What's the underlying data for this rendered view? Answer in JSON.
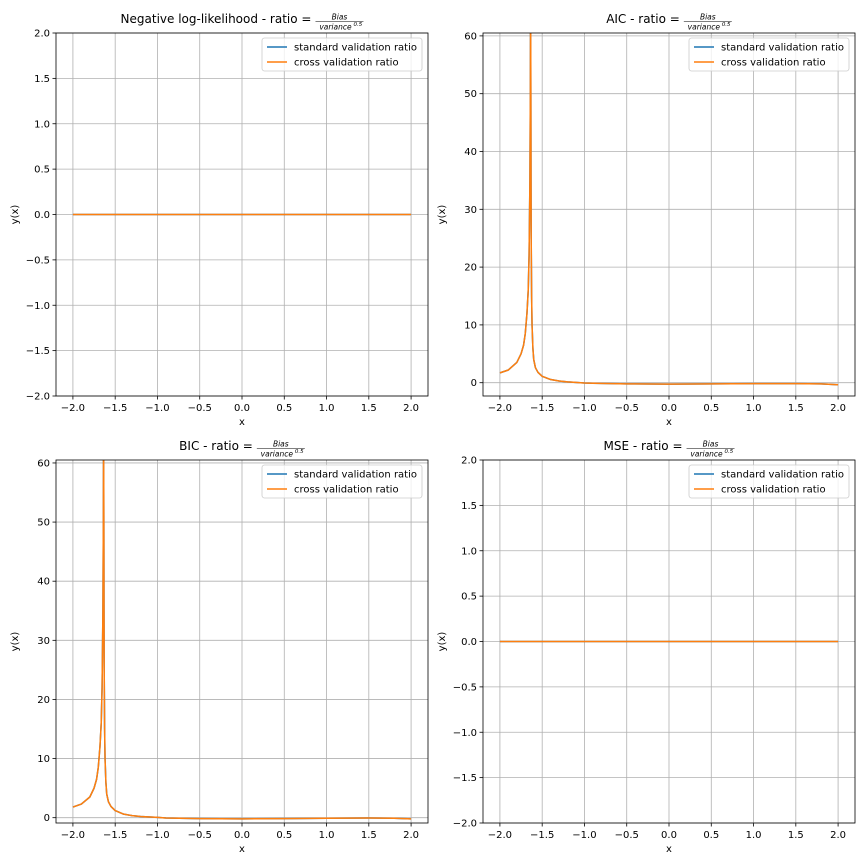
{
  "chart_data": [
    {
      "type": "line",
      "title": "Negative log-likelihood - ratio =",
      "title_fraction": {
        "numerator": "Bias",
        "denominator": "variance",
        "exponent": "0.5"
      },
      "xlabel": "x",
      "ylabel": "y(x)",
      "xlim": [
        -2.2,
        2.2
      ],
      "ylim": [
        -2.0,
        2.0
      ],
      "xticks": [
        "-2.0",
        "-1.5",
        "-1.0",
        "-0.5",
        "0.0",
        "0.5",
        "1.0",
        "1.5",
        "2.0"
      ],
      "yticks": [
        "-2.0",
        "-1.5",
        "-1.0",
        "-0.5",
        "0.0",
        "0.5",
        "1.0",
        "1.5",
        "2.0"
      ],
      "grid": true,
      "legend": "top-right",
      "series": [
        {
          "name": "standard validation ratio",
          "color": "#1f77b4",
          "x": [
            -2.0,
            -1.5,
            -1.0,
            -0.5,
            0.0,
            0.5,
            1.0,
            1.5,
            2.0
          ],
          "y": [
            0,
            0,
            0,
            0,
            0,
            0,
            0,
            0,
            0
          ]
        },
        {
          "name": "cross validation ratio",
          "color": "#ff7f0e",
          "x": [
            -2.0,
            -1.5,
            -1.0,
            -0.5,
            0.0,
            0.5,
            1.0,
            1.5,
            2.0
          ],
          "y": [
            0,
            0,
            0,
            0,
            0,
            0,
            0,
            0,
            0
          ]
        }
      ]
    },
    {
      "type": "line",
      "title": "AIC - ratio =",
      "title_fraction": {
        "numerator": "Bias",
        "denominator": "variance",
        "exponent": "0.5"
      },
      "xlabel": "x",
      "ylabel": "y(x)",
      "xlim": [
        -2.2,
        2.2
      ],
      "ylim": [
        -2.3,
        60.5
      ],
      "xticks": [
        "-2.0",
        "-1.5",
        "-1.0",
        "-0.5",
        "0.0",
        "0.5",
        "1.0",
        "1.5",
        "2.0"
      ],
      "yticks": [
        "0",
        "10",
        "20",
        "30",
        "40",
        "50",
        "60"
      ],
      "grid": true,
      "legend": "top-right",
      "series": [
        {
          "name": "standard validation ratio",
          "color": "#1f77b4",
          "x": [
            -2.0,
            -1.9,
            -1.8,
            -1.75,
            -1.72,
            -1.7,
            -1.68,
            -1.665,
            -1.655,
            -1.645,
            -1.64,
            -1.638,
            -1.636,
            -1.634,
            -1.632,
            -1.63,
            -1.625,
            -1.62,
            -1.61,
            -1.6,
            -1.58,
            -1.55,
            -1.5,
            -1.4,
            -1.3,
            -1.2,
            -1.0,
            -0.9,
            -0.5,
            0.0,
            0.5,
            1.0,
            1.5,
            1.8,
            2.0
          ],
          "y": [
            1.7,
            2.2,
            3.5,
            5.0,
            6.5,
            8.5,
            12.0,
            16.0,
            22.0,
            35.0,
            50.0,
            60.5,
            60.5,
            50.0,
            35.0,
            25.0,
            15.0,
            10.0,
            6.0,
            4.0,
            2.6,
            1.8,
            1.1,
            0.55,
            0.3,
            0.15,
            -0.05,
            -0.1,
            -0.2,
            -0.25,
            -0.2,
            -0.15,
            -0.15,
            -0.2,
            -0.35
          ]
        },
        {
          "name": "cross validation ratio",
          "color": "#ff7f0e",
          "x": [
            -2.0,
            -1.9,
            -1.8,
            -1.75,
            -1.72,
            -1.7,
            -1.68,
            -1.665,
            -1.655,
            -1.645,
            -1.64,
            -1.638,
            -1.636,
            -1.634,
            -1.632,
            -1.63,
            -1.625,
            -1.62,
            -1.61,
            -1.6,
            -1.58,
            -1.55,
            -1.5,
            -1.4,
            -1.3,
            -1.2,
            -1.0,
            -0.9,
            -0.5,
            0.0,
            0.5,
            1.0,
            1.5,
            1.8,
            2.0
          ],
          "y": [
            1.7,
            2.2,
            3.5,
            5.0,
            6.5,
            8.5,
            12.0,
            16.0,
            22.0,
            35.0,
            50.0,
            60.5,
            60.5,
            50.0,
            35.0,
            25.0,
            15.0,
            10.0,
            6.0,
            4.0,
            2.6,
            1.8,
            1.1,
            0.55,
            0.3,
            0.15,
            -0.05,
            -0.1,
            -0.2,
            -0.25,
            -0.2,
            -0.15,
            -0.15,
            -0.2,
            -0.35
          ]
        }
      ]
    },
    {
      "type": "line",
      "title": "BIC - ratio =",
      "title_fraction": {
        "numerator": "Bias",
        "denominator": "variance",
        "exponent": "0.5"
      },
      "xlabel": "x",
      "ylabel": "y(x)",
      "xlim": [
        -2.2,
        2.2
      ],
      "ylim": [
        -0.9,
        60.5
      ],
      "xticks": [
        "-2.0",
        "-1.5",
        "-1.0",
        "-0.5",
        "0.0",
        "0.5",
        "1.0",
        "1.5",
        "2.0"
      ],
      "yticks": [
        "0",
        "10",
        "20",
        "30",
        "40",
        "50",
        "60"
      ],
      "grid": true,
      "legend": "top-right",
      "series": [
        {
          "name": "standard validation ratio",
          "color": "#1f77b4",
          "x": [
            -2.0,
            -1.9,
            -1.8,
            -1.75,
            -1.72,
            -1.7,
            -1.68,
            -1.665,
            -1.655,
            -1.645,
            -1.64,
            -1.638,
            -1.636,
            -1.634,
            -1.632,
            -1.63,
            -1.625,
            -1.62,
            -1.61,
            -1.6,
            -1.58,
            -1.55,
            -1.5,
            -1.4,
            -1.3,
            -1.2,
            -1.0,
            -0.9,
            -0.5,
            0.0,
            0.5,
            1.0,
            1.5,
            1.8,
            2.0
          ],
          "y": [
            1.8,
            2.3,
            3.5,
            5.0,
            6.5,
            8.5,
            12.0,
            16.0,
            22.0,
            35.0,
            50.0,
            60.5,
            60.5,
            50.0,
            35.0,
            25.0,
            15.0,
            10.0,
            6.0,
            4.0,
            2.7,
            1.9,
            1.2,
            0.6,
            0.35,
            0.2,
            0.05,
            -0.05,
            -0.15,
            -0.2,
            -0.15,
            -0.1,
            -0.05,
            -0.1,
            -0.2
          ]
        },
        {
          "name": "cross validation ratio",
          "color": "#ff7f0e",
          "x": [
            -2.0,
            -1.9,
            -1.8,
            -1.75,
            -1.72,
            -1.7,
            -1.68,
            -1.665,
            -1.655,
            -1.645,
            -1.64,
            -1.638,
            -1.636,
            -1.634,
            -1.632,
            -1.63,
            -1.625,
            -1.62,
            -1.61,
            -1.6,
            -1.58,
            -1.55,
            -1.5,
            -1.4,
            -1.3,
            -1.2,
            -1.0,
            -0.9,
            -0.5,
            0.0,
            0.5,
            1.0,
            1.5,
            1.8,
            2.0
          ],
          "y": [
            1.8,
            2.3,
            3.5,
            5.0,
            6.5,
            8.5,
            12.0,
            16.0,
            22.0,
            35.0,
            50.0,
            60.5,
            60.5,
            50.0,
            35.0,
            25.0,
            15.0,
            10.0,
            6.0,
            4.0,
            2.7,
            1.9,
            1.2,
            0.6,
            0.35,
            0.2,
            0.05,
            -0.05,
            -0.15,
            -0.2,
            -0.15,
            -0.1,
            -0.05,
            -0.1,
            -0.2
          ]
        }
      ]
    },
    {
      "type": "line",
      "title": "MSE - ratio =",
      "title_fraction": {
        "numerator": "Bias",
        "denominator": "variance",
        "exponent": "0.5"
      },
      "xlabel": "x",
      "ylabel": "y(x)",
      "xlim": [
        -2.2,
        2.2
      ],
      "ylim": [
        -2.0,
        2.0
      ],
      "xticks": [
        "-2.0",
        "-1.5",
        "-1.0",
        "-0.5",
        "0.0",
        "0.5",
        "1.0",
        "1.5",
        "2.0"
      ],
      "yticks": [
        "-2.0",
        "-1.5",
        "-1.0",
        "-0.5",
        "0.0",
        "0.5",
        "1.0",
        "1.5",
        "2.0"
      ],
      "grid": true,
      "legend": "top-right",
      "series": [
        {
          "name": "standard validation ratio",
          "color": "#1f77b4",
          "x": [
            -2.0,
            -1.5,
            -1.0,
            -0.5,
            0.0,
            0.5,
            1.0,
            1.5,
            2.0
          ],
          "y": [
            0,
            0,
            0,
            0,
            0,
            0,
            0,
            0,
            0
          ]
        },
        {
          "name": "cross validation ratio",
          "color": "#ff7f0e",
          "x": [
            -2.0,
            -1.5,
            -1.0,
            -0.5,
            0.0,
            0.5,
            1.0,
            1.5,
            2.0
          ],
          "y": [
            0,
            0,
            0,
            0,
            0,
            0,
            0,
            0,
            0
          ]
        }
      ]
    }
  ]
}
